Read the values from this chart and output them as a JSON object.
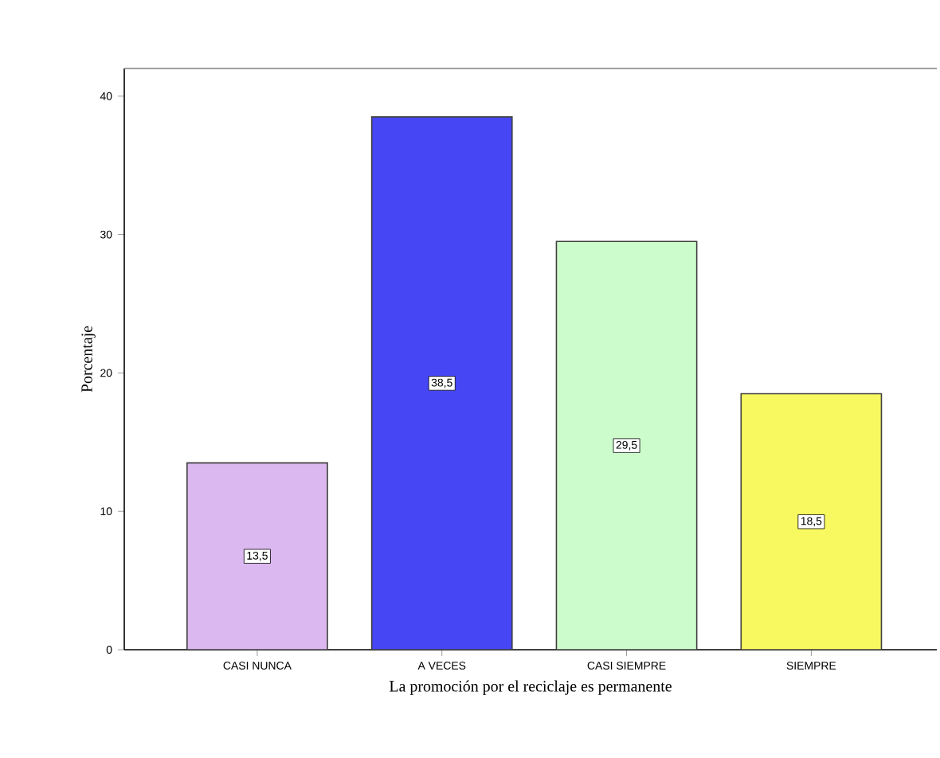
{
  "chart_data": {
    "type": "bar",
    "xlabel": "La promoción por el reciclaje es permanente",
    "ylabel": "Porcentaje",
    "categories": [
      "CASI NUNCA",
      "A VECES",
      "CASI SIEMPRE",
      "SIEMPRE"
    ],
    "values": [
      13.5,
      38.5,
      29.5,
      18.5
    ],
    "value_labels": [
      "13,5",
      "38,5",
      "29,5",
      "18,5"
    ],
    "colors": [
      "#dcb8f0",
      "#4646f5",
      "#ccfccc",
      "#f8f860"
    ],
    "ylim": [
      0,
      42
    ],
    "yticks": [
      0,
      10,
      20,
      30,
      40
    ]
  }
}
